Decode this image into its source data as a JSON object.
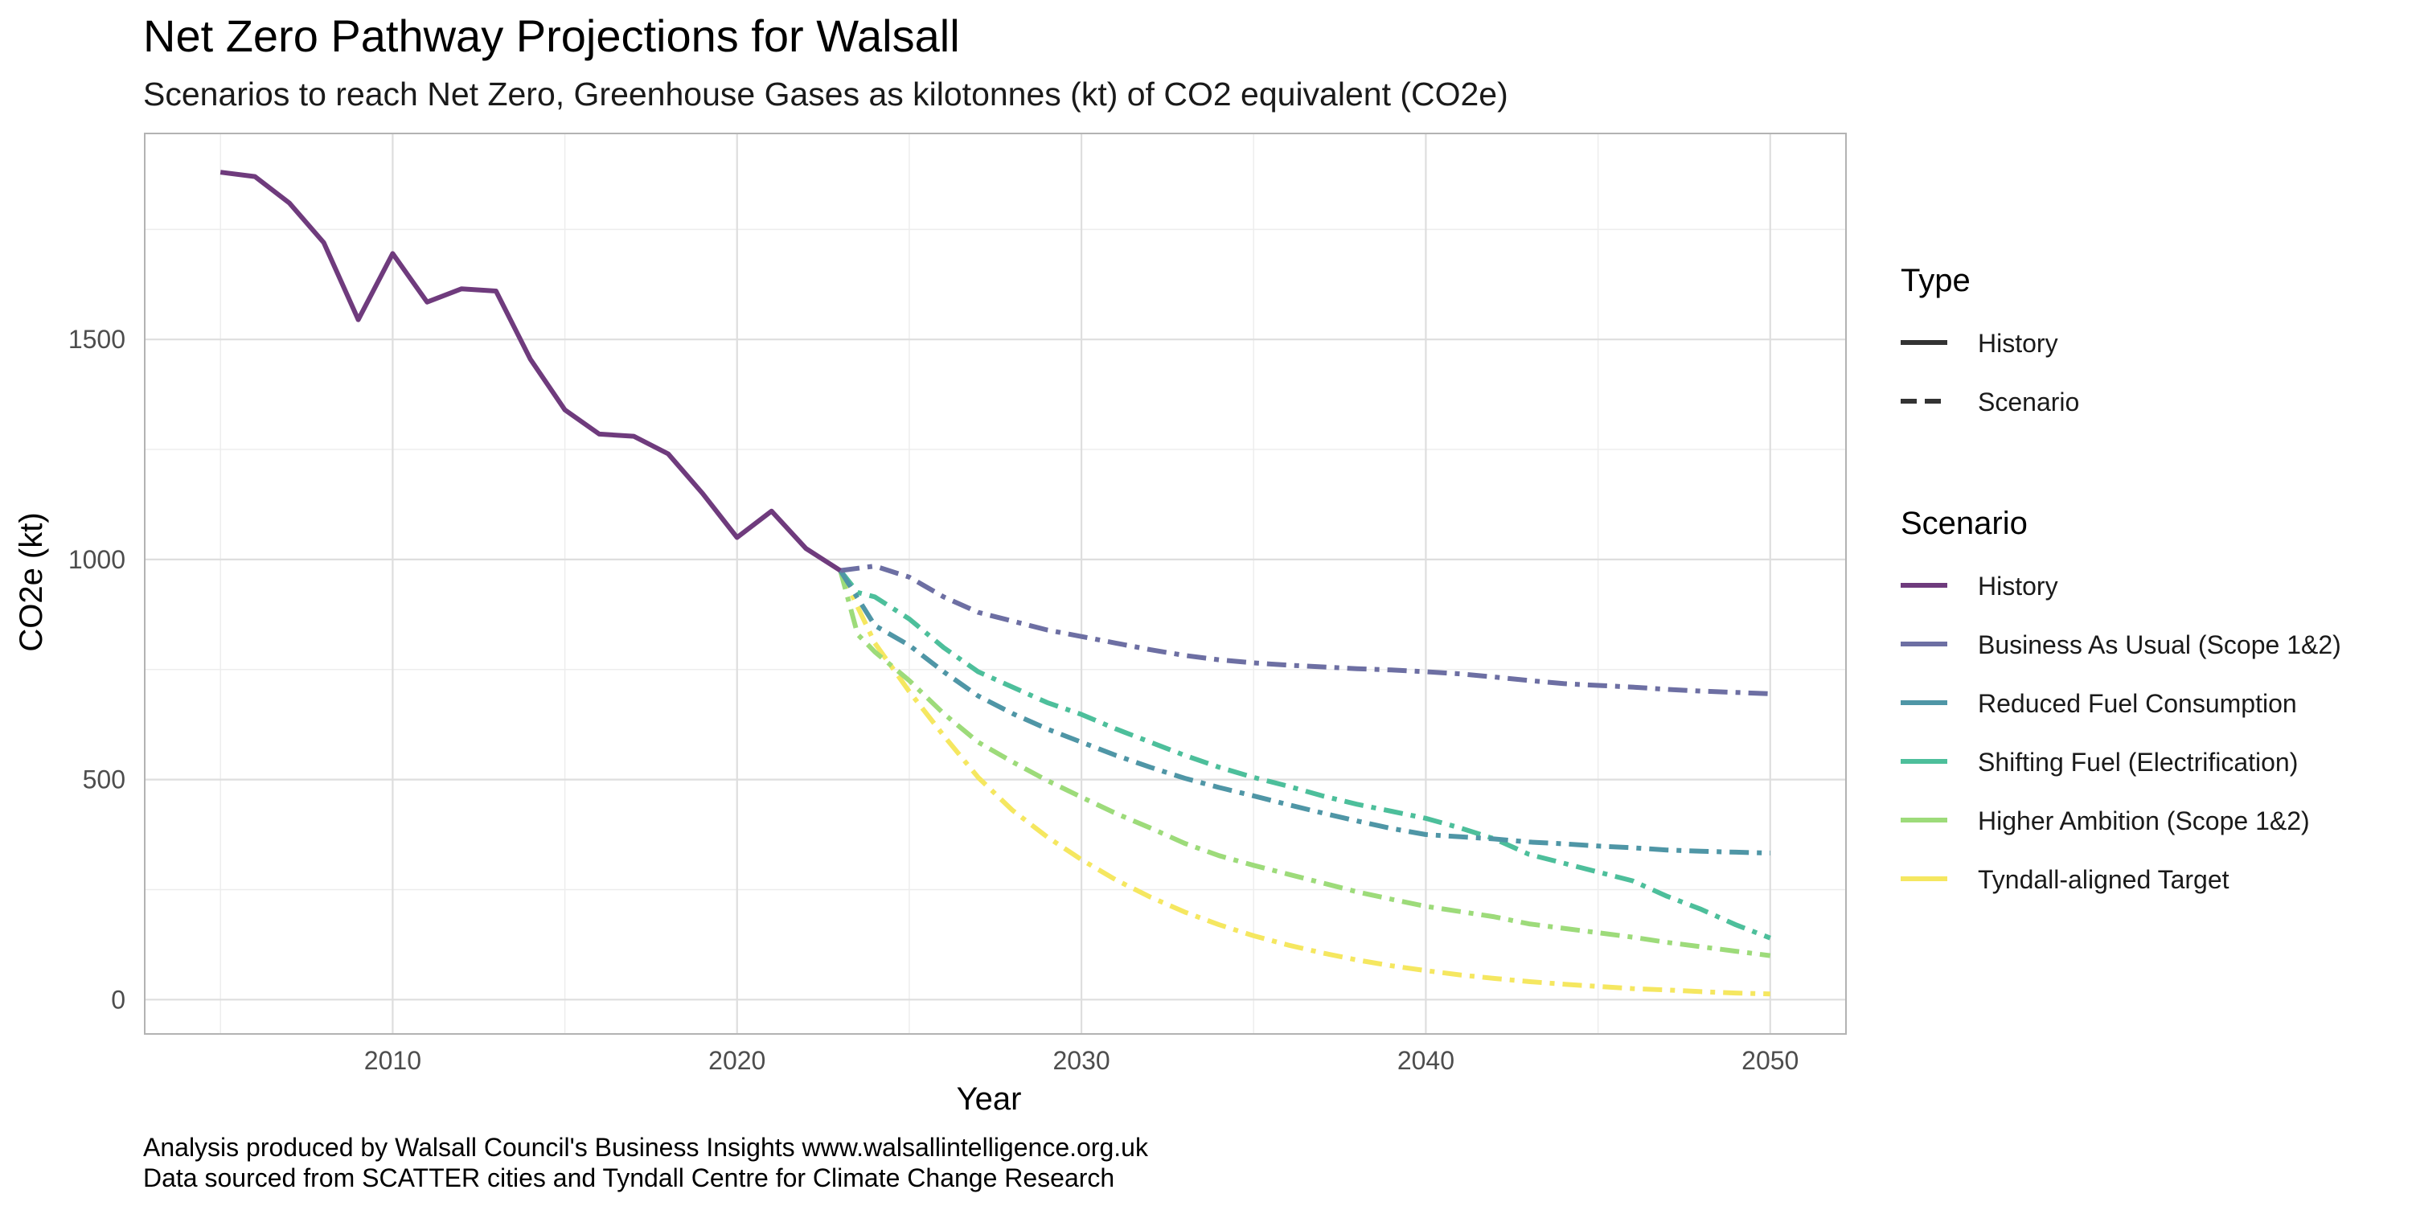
{
  "chart_data": {
    "type": "line",
    "title": "Net Zero Pathway Projections for Walsall",
    "subtitle": "Scenarios to reach Net Zero, Greenhouse Gases as kilotonnes (kt) of CO2 equivalent (CO2e)",
    "xlabel": "Year",
    "ylabel": "CO2e (kt)",
    "xlim": [
      2002.8,
      2052.2
    ],
    "ylim": [
      -78,
      1968
    ],
    "x_ticks": [
      2010,
      2020,
      2030,
      2040,
      2050
    ],
    "x_minor_ticks": [
      2005,
      2015,
      2025,
      2035,
      2045
    ],
    "y_ticks": [
      0,
      500,
      1000,
      1500
    ],
    "y_minor_ticks": [
      250,
      750,
      1250,
      1750
    ],
    "grid": true,
    "legend_position": "right",
    "captions": [
      "Analysis produced by Walsall Council's Business Insights www.walsallintelligence.org.uk",
      "Data sourced from SCATTER cities and Tyndall Centre for Climate Change Research"
    ],
    "legend_type": {
      "title": "Type",
      "items": [
        {
          "label": "History",
          "linetype": "solid"
        },
        {
          "label": "Scenario",
          "linetype": "dashed"
        }
      ]
    },
    "legend_scenario": {
      "title": "Scenario",
      "items": [
        {
          "label": "History",
          "color": "#6f3b7d"
        },
        {
          "label": "Business As Usual (Scope 1&2)",
          "color": "#6d6fa3"
        },
        {
          "label": "Reduced Fuel Consumption",
          "color": "#4f96a6"
        },
        {
          "label": "Shifting Fuel (Electrification)",
          "color": "#4dbf9b"
        },
        {
          "label": "Higher Ambition (Scope 1&2)",
          "color": "#9ddb7a"
        },
        {
          "label": "Tyndall-aligned Target",
          "color": "#f5e760"
        }
      ]
    },
    "series": [
      {
        "name": "History",
        "color": "#6f3b7d",
        "linetype": "solid",
        "x": [
          2005,
          2006,
          2007,
          2008,
          2009,
          2010,
          2011,
          2012,
          2013,
          2014,
          2015,
          2016,
          2017,
          2018,
          2019,
          2020,
          2021,
          2022,
          2023
        ],
        "y": [
          1880,
          1870,
          1810,
          1720,
          1545,
          1695,
          1585,
          1615,
          1610,
          1455,
          1340,
          1285,
          1280,
          1240,
          1150,
          1050,
          1110,
          1025,
          975
        ]
      },
      {
        "name": "Business As Usual (Scope 1&2)",
        "color": "#6d6fa3",
        "linetype": "dashed",
        "x": [
          2023,
          2024,
          2025,
          2026,
          2027,
          2028,
          2029,
          2030,
          2031,
          2032,
          2033,
          2034,
          2035,
          2036,
          2037,
          2038,
          2039,
          2040,
          2041,
          2042,
          2043,
          2044,
          2045,
          2046,
          2047,
          2048,
          2049,
          2050
        ],
        "y": [
          975,
          985,
          960,
          915,
          880,
          860,
          840,
          825,
          810,
          795,
          782,
          772,
          765,
          760,
          756,
          752,
          749,
          745,
          740,
          733,
          725,
          718,
          714,
          710,
          705,
          701,
          698,
          695
        ]
      },
      {
        "name": "Reduced Fuel Consumption",
        "color": "#4f96a6",
        "linetype": "dashed",
        "x": [
          2023,
          2024,
          2025,
          2026,
          2027,
          2028,
          2029,
          2030,
          2031,
          2032,
          2033,
          2034,
          2035,
          2036,
          2037,
          2038,
          2039,
          2040,
          2041,
          2042,
          2043,
          2044,
          2045,
          2046,
          2047,
          2048,
          2049,
          2050
        ],
        "y": [
          975,
          850,
          805,
          745,
          690,
          650,
          615,
          585,
          555,
          528,
          503,
          482,
          463,
          443,
          424,
          406,
          389,
          375,
          370,
          365,
          358,
          354,
          349,
          345,
          340,
          337,
          335,
          333
        ]
      },
      {
        "name": "Shifting Fuel (Electrification)",
        "color": "#4dbf9b",
        "linetype": "dashed",
        "x": [
          2023,
          2023.5,
          2024,
          2025,
          2026,
          2027,
          2028,
          2029,
          2030,
          2031,
          2032,
          2033,
          2034,
          2035,
          2036,
          2037,
          2038,
          2039,
          2040,
          2041,
          2042,
          2043,
          2044,
          2045,
          2046,
          2047,
          2048,
          2049,
          2050
        ],
        "y": [
          975,
          925,
          915,
          865,
          800,
          745,
          710,
          675,
          648,
          615,
          585,
          555,
          528,
          505,
          485,
          463,
          444,
          428,
          412,
          390,
          365,
          330,
          310,
          290,
          270,
          235,
          205,
          170,
          140
        ]
      },
      {
        "name": "Higher Ambition (Scope 1&2)",
        "color": "#9ddb7a",
        "linetype": "dashed",
        "x": [
          2023,
          2023.5,
          2024,
          2025,
          2026,
          2027,
          2028,
          2029,
          2030,
          2031,
          2032,
          2033,
          2034,
          2035,
          2036,
          2037,
          2038,
          2039,
          2040,
          2041,
          2042,
          2043,
          2044,
          2045,
          2046,
          2047,
          2048,
          2049,
          2050
        ],
        "y": [
          975,
          830,
          790,
          725,
          650,
          585,
          540,
          498,
          460,
          423,
          390,
          355,
          327,
          305,
          285,
          265,
          245,
          228,
          212,
          200,
          188,
          172,
          162,
          152,
          142,
          130,
          120,
          110,
          100
        ]
      },
      {
        "name": "Tyndall-aligned Target",
        "color": "#f5e760",
        "linetype": "dashed",
        "x": [
          2023,
          2024,
          2025,
          2026,
          2027,
          2028,
          2029,
          2030,
          2031,
          2032,
          2033,
          2034,
          2035,
          2036,
          2037,
          2038,
          2039,
          2040,
          2041,
          2042,
          2043,
          2044,
          2045,
          2046,
          2047,
          2048,
          2049,
          2050
        ],
        "y": [
          975,
          810,
          700,
          600,
          505,
          430,
          370,
          318,
          272,
          233,
          199,
          170,
          145,
          124,
          106,
          90,
          77,
          66,
          56,
          48,
          41,
          35,
          30,
          25,
          22,
          18,
          15,
          13
        ]
      }
    ]
  }
}
